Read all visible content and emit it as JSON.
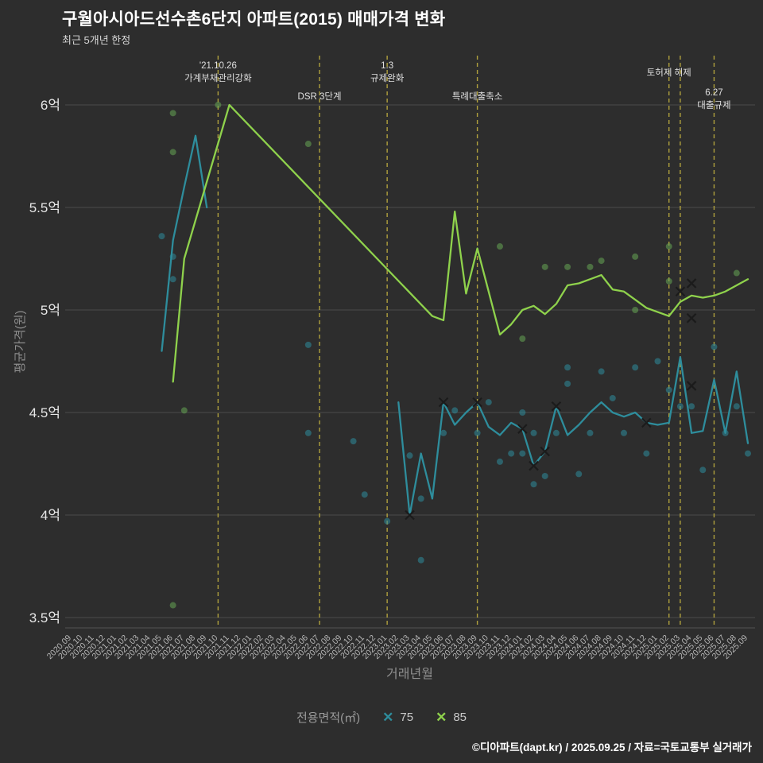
{
  "footer": {
    "credit": "©디아파트(dapt.kr) / 2025.09.25 / 자료=국토교통부 실거래가"
  },
  "chart_data": {
    "type": "line",
    "title": "구월아시아드선수촌6단지 아파트(2015) 매매가격 변화",
    "subtitle": "최근 5개년 한정",
    "x_label": "거래년월",
    "y_label": "평균가격(원)",
    "ylim": [
      3.45,
      6.1
    ],
    "grid": "horizontal",
    "legend": {
      "title": "전용면적(㎡)",
      "position": "bottom"
    },
    "y_ticks": [
      {
        "value": 6.0,
        "label": "6억"
      },
      {
        "value": 5.5,
        "label": "5.5억"
      },
      {
        "value": 5.0,
        "label": "5억"
      },
      {
        "value": 4.5,
        "label": "4.5억"
      },
      {
        "value": 4.0,
        "label": "4억"
      },
      {
        "value": 3.5,
        "label": "3.5억"
      }
    ],
    "categories": [
      "2020.09",
      "2020.10",
      "2020.11",
      "2020.12",
      "2021.01",
      "2021.02",
      "2021.03",
      "2021.04",
      "2021.05",
      "2021.06",
      "2021.07",
      "2021.08",
      "2021.09",
      "2021.10",
      "2021.11",
      "2021.12",
      "2022.01",
      "2022.02",
      "2022.03",
      "2022.04",
      "2022.05",
      "2022.06",
      "2022.07",
      "2022.08",
      "2022.09",
      "2022.10",
      "2022.11",
      "2022.12",
      "2023.01",
      "2023.02",
      "2023.03",
      "2023.04",
      "2023.05",
      "2023.06",
      "2023.07",
      "2023.08",
      "2023.09",
      "2023.10",
      "2023.11",
      "2023.12",
      "2024.01",
      "2024.02",
      "2024.03",
      "2024.04",
      "2024.05",
      "2024.06",
      "2024.07",
      "2024.08",
      "2024.09",
      "2024.10",
      "2024.11",
      "2024.12",
      "2025.01",
      "2025.02",
      "2025.03",
      "2025.04",
      "2025.05",
      "2025.06",
      "2025.07",
      "2025.08",
      "2025.09"
    ],
    "annotations": [
      {
        "month": "2021.10",
        "labels": [
          "'21.10.26",
          "가계부채관리강화"
        ],
        "label_top": 86
      },
      {
        "month": "2022.07",
        "labels": [
          "DSR 3단계"
        ],
        "label_top": 125
      },
      {
        "month": "2023.01",
        "labels": [
          "1.3",
          "규제완화"
        ],
        "label_top": 86
      },
      {
        "month": "2023.09",
        "labels": [
          "특례대출축소"
        ],
        "label_top": 125
      },
      {
        "month": "2025.02",
        "labels": [
          "토허제 해제"
        ],
        "label_top": 95
      },
      {
        "month": "2025.03",
        "labels": [],
        "label_top": 0
      },
      {
        "month": "2025.06",
        "labels": [
          "6.27",
          "대출규제"
        ],
        "label_top": 120
      }
    ],
    "series": [
      {
        "name": "75",
        "color": "#2e8d9c",
        "dot_color": "#2e8d9c",
        "marker_color": "#1b1b1b",
        "segments": [
          [
            [
              "2021.05",
              4.8
            ],
            [
              "2021.06",
              5.34
            ],
            [
              "2021.07",
              5.6
            ],
            [
              "2021.08",
              5.85
            ],
            [
              "2021.09",
              5.5
            ]
          ],
          [
            [
              "2023.02",
              4.55
            ],
            [
              "2023.03",
              4.0
            ],
            [
              "2023.04",
              4.3
            ],
            [
              "2023.05",
              4.08
            ],
            [
              "2023.06",
              4.55
            ],
            [
              "2023.07",
              4.44
            ],
            [
              "2023.08",
              4.5
            ],
            [
              "2023.09",
              4.55
            ],
            [
              "2023.10",
              4.43
            ],
            [
              "2023.11",
              4.39
            ],
            [
              "2023.12",
              4.45
            ],
            [
              "2024.01",
              4.42
            ],
            [
              "2024.02",
              4.24
            ],
            [
              "2024.03",
              4.31
            ],
            [
              "2024.04",
              4.53
            ],
            [
              "2024.05",
              4.39
            ],
            [
              "2024.06",
              4.44
            ],
            [
              "2024.07",
              4.5
            ],
            [
              "2024.08",
              4.55
            ],
            [
              "2024.09",
              4.5
            ],
            [
              "2024.10",
              4.48
            ],
            [
              "2024.11",
              4.5
            ],
            [
              "2024.12",
              4.45
            ],
            [
              "2025.01",
              4.44
            ],
            [
              "2025.02",
              4.45
            ],
            [
              "2025.03",
              4.77
            ],
            [
              "2025.04",
              4.4
            ],
            [
              "2025.05",
              4.41
            ],
            [
              "2025.06",
              4.66
            ],
            [
              "2025.07",
              4.4
            ],
            [
              "2025.08",
              4.7
            ],
            [
              "2025.09",
              4.35
            ]
          ]
        ],
        "x_markers": [
          [
            "2023.03",
            4.0
          ],
          [
            "2023.06",
            4.55
          ],
          [
            "2023.09",
            4.55
          ],
          [
            "2024.01",
            4.42
          ],
          [
            "2024.02",
            4.24
          ],
          [
            "2024.03",
            4.31
          ],
          [
            "2024.04",
            4.53
          ],
          [
            "2024.12",
            4.45
          ],
          [
            "2025.04",
            4.63
          ]
        ],
        "scatter": [
          [
            "2021.05",
            5.36
          ],
          [
            "2021.06",
            5.26
          ],
          [
            "2021.06",
            5.15
          ],
          [
            "2022.06",
            4.83
          ],
          [
            "2022.06",
            4.4
          ],
          [
            "2022.10",
            4.36
          ],
          [
            "2022.11",
            4.1
          ],
          [
            "2023.01",
            3.97
          ],
          [
            "2023.03",
            4.29
          ],
          [
            "2023.04",
            4.08
          ],
          [
            "2023.04",
            3.78
          ],
          [
            "2023.06",
            4.4
          ],
          [
            "2023.07",
            4.51
          ],
          [
            "2023.09",
            4.4
          ],
          [
            "2023.10",
            4.55
          ],
          [
            "2023.11",
            4.26
          ],
          [
            "2023.12",
            4.3
          ],
          [
            "2024.01",
            4.5
          ],
          [
            "2024.01",
            4.3
          ],
          [
            "2024.02",
            4.4
          ],
          [
            "2024.02",
            4.15
          ],
          [
            "2024.03",
            4.19
          ],
          [
            "2024.04",
            4.4
          ],
          [
            "2024.05",
            4.72
          ],
          [
            "2024.05",
            4.64
          ],
          [
            "2024.06",
            4.2
          ],
          [
            "2024.07",
            4.4
          ],
          [
            "2024.08",
            4.7
          ],
          [
            "2024.09",
            4.57
          ],
          [
            "2024.10",
            4.4
          ],
          [
            "2024.11",
            4.72
          ],
          [
            "2024.12",
            4.3
          ],
          [
            "2025.01",
            4.75
          ],
          [
            "2025.02",
            4.61
          ],
          [
            "2025.03",
            4.53
          ],
          [
            "2025.04",
            4.53
          ],
          [
            "2025.05",
            4.22
          ],
          [
            "2025.06",
            4.82
          ],
          [
            "2025.07",
            4.4
          ],
          [
            "2025.08",
            4.53
          ],
          [
            "2025.09",
            4.3
          ]
        ]
      },
      {
        "name": "85",
        "color": "#8fd24c",
        "dot_color": "#66a653",
        "marker_color": "#1b1b1b",
        "segments": [
          [
            [
              "2021.06",
              4.65
            ],
            [
              "2021.07",
              5.25
            ],
            [
              "2021.11",
              6.0
            ],
            [
              "2023.05",
              4.97
            ],
            [
              "2023.06",
              4.95
            ],
            [
              "2023.07",
              5.48
            ],
            [
              "2023.08",
              5.08
            ],
            [
              "2023.09",
              5.3
            ],
            [
              "2023.11",
              4.88
            ],
            [
              "2023.12",
              4.93
            ],
            [
              "2024.01",
              5.0
            ],
            [
              "2024.02",
              5.02
            ],
            [
              "2024.03",
              4.98
            ],
            [
              "2024.04",
              5.03
            ],
            [
              "2024.05",
              5.12
            ],
            [
              "2024.06",
              5.13
            ],
            [
              "2024.07",
              5.15
            ],
            [
              "2024.08",
              5.17
            ],
            [
              "2024.09",
              5.1
            ],
            [
              "2024.10",
              5.09
            ],
            [
              "2024.11",
              5.05
            ],
            [
              "2024.12",
              5.01
            ],
            [
              "2025.01",
              4.99
            ],
            [
              "2025.02",
              4.97
            ],
            [
              "2025.03",
              5.04
            ],
            [
              "2025.04",
              5.07
            ],
            [
              "2025.05",
              5.06
            ],
            [
              "2025.06",
              5.07
            ],
            [
              "2025.07",
              5.09
            ],
            [
              "2025.08",
              5.12
            ],
            [
              "2025.09",
              5.15
            ]
          ]
        ],
        "x_markers": [
          [
            "2025.03",
            5.09
          ],
          [
            "2025.04",
            5.13
          ],
          [
            "2025.04",
            4.96
          ]
        ],
        "scatter": [
          [
            "2021.06",
            5.96
          ],
          [
            "2021.06",
            5.77
          ],
          [
            "2021.06",
            3.56
          ],
          [
            "2021.07",
            4.51
          ],
          [
            "2021.10",
            6.0
          ],
          [
            "2022.06",
            5.81
          ],
          [
            "2023.11",
            5.31
          ],
          [
            "2024.01",
            4.86
          ],
          [
            "2024.03",
            5.21
          ],
          [
            "2024.05",
            5.21
          ],
          [
            "2024.07",
            5.21
          ],
          [
            "2024.08",
            5.24
          ],
          [
            "2024.11",
            5.26
          ],
          [
            "2024.11",
            5.0
          ],
          [
            "2025.02",
            5.31
          ],
          [
            "2025.02",
            5.14
          ],
          [
            "2025.08",
            5.18
          ]
        ]
      }
    ],
    "style": {
      "background": "#2d2d2d",
      "grid_color": "#4a4a4a",
      "annotation_line_color": "#b6a73e",
      "tick_label_color": "#b8b8b8",
      "y_tick_label_color": "#e6e6e6",
      "axis_title_color": "#8f8f8f"
    }
  }
}
